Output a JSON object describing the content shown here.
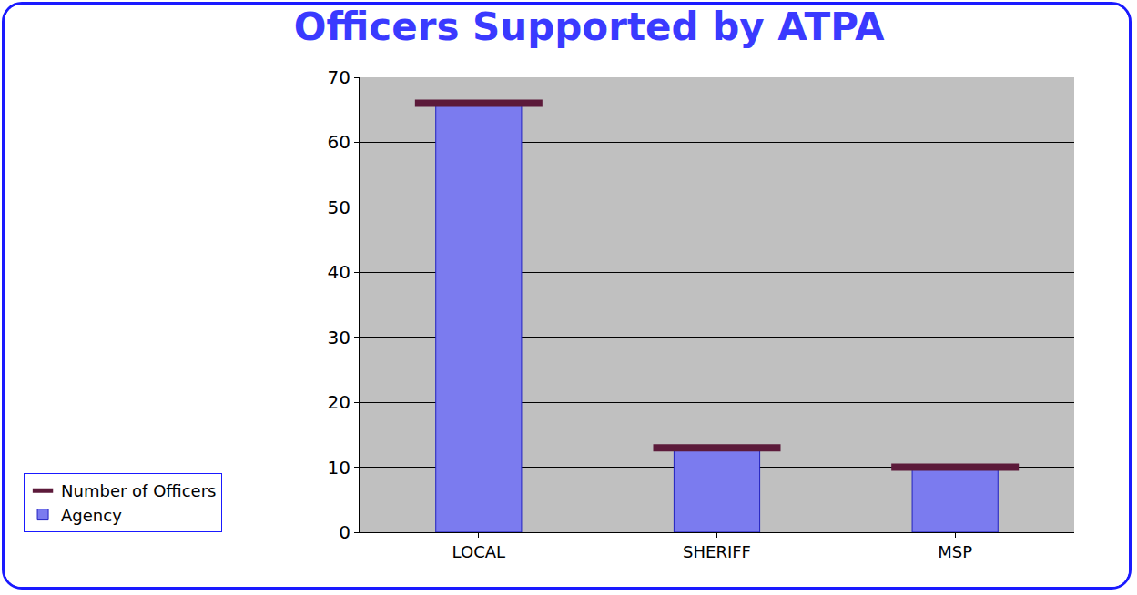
{
  "chart_data": {
    "type": "bar",
    "title": "Officers Supported by ATPA",
    "categories": [
      "LOCAL",
      "SHERIFF",
      "MSP"
    ],
    "series": [
      {
        "name": "Agency",
        "type": "bar",
        "color": "#7b7bef",
        "values": [
          66,
          13,
          10
        ]
      },
      {
        "name": "Number of Officers",
        "type": "scatter",
        "color": "#5c1a3a",
        "values": [
          66,
          13,
          10
        ]
      }
    ],
    "ylim": [
      0,
      70
    ],
    "yticks": [
      0,
      10,
      20,
      30,
      40,
      50,
      60,
      70
    ],
    "grid": true,
    "legend": "bottom left"
  }
}
